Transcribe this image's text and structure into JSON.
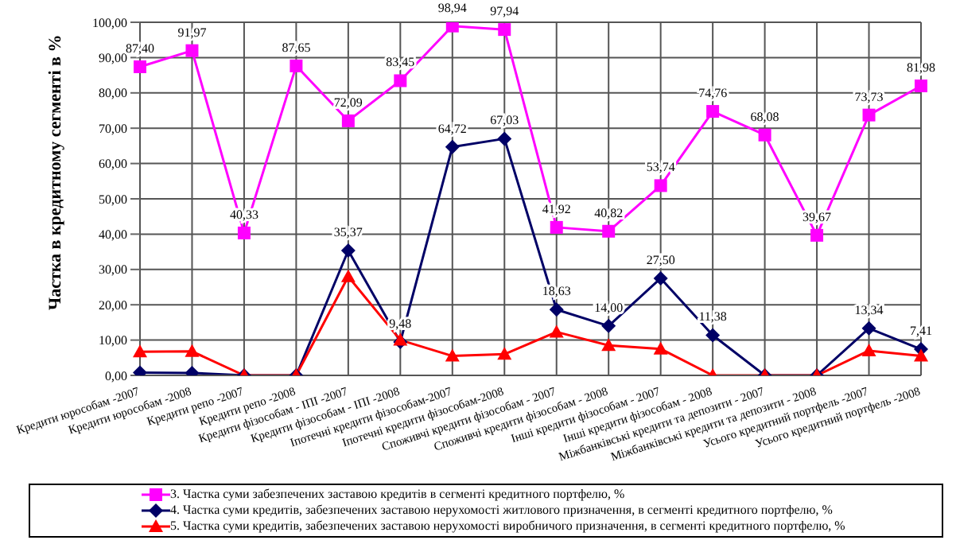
{
  "chart_data": {
    "type": "line",
    "ylabel": "Частка в кредитному сегменті в %",
    "categories": [
      "Кредити юрособам -2007",
      "Кредити юрособам -2008",
      "Кредити репо -2007",
      "Кредити репо -2008",
      "Кредити фізособам - ІПІ -2007",
      "Кредити фізособам - ІПІ -2008",
      "Іпотечні кредити фізособам-2007",
      "Іпотечні кредити фізособам-2008",
      "Споживчі кредити фізособам - 2007",
      "Споживчі кредити фізособам - 2008",
      "Інші кредити фізособам - 2007",
      "Інші кредити фізособам - 2008",
      "Міжбанківські кредити та депозити - 2007",
      "Міжбанківські кредити та депозити - 2008",
      "Усього кредитний портфель -2007",
      "Усього кредитний портфель -2008"
    ],
    "series": [
      {
        "name": "3. Частка суми забезпечених заставою кредитів в сегменті кредитного портфелю, %",
        "color": "#ff00ff",
        "marker": "square",
        "values": [
          87.4,
          91.97,
          40.33,
          87.65,
          72.09,
          83.45,
          98.94,
          97.94,
          41.92,
          40.82,
          53.74,
          74.76,
          68.08,
          39.67,
          73.73,
          81.98
        ],
        "value_labels": [
          "87,40",
          "91,97",
          "40,33",
          "87,65",
          "72,09",
          "83,45",
          "98,94",
          "97,94",
          "41,92",
          "40,82",
          "53,74",
          "74,76",
          "68,08",
          "39,67",
          "73,73",
          "81,98"
        ]
      },
      {
        "name": "4. Частка суми кредитів, забезпечених заставою нерухомості житлового призначення, в сегменті кредитного портфелю, %",
        "color": "#000066",
        "marker": "diamond",
        "values": [
          0.8,
          0.7,
          0,
          0,
          35.37,
          9.48,
          64.72,
          67.03,
          18.63,
          14.0,
          27.5,
          11.38,
          0,
          0,
          13.34,
          7.41
        ],
        "value_labels": [
          null,
          null,
          null,
          null,
          "35,37",
          "9,48",
          "64,72",
          "67,03",
          "18,63",
          "14,00",
          "27,50",
          "11,38",
          null,
          null,
          "13,34",
          "7,41"
        ]
      },
      {
        "name": "5. Частка суми кредитів, забезпечених заставою нерухомості виробничого призначення, в сегменті кредитного портфелю, %",
        "color": "#ff0000",
        "marker": "triangle",
        "values": [
          6.7,
          6.8,
          0,
          0,
          28,
          10,
          5.5,
          6,
          12.3,
          8.5,
          7.5,
          0,
          0,
          0,
          7,
          5.5
        ]
      }
    ],
    "ylim": [
      0,
      100
    ],
    "yticks": [
      {
        "value": 0,
        "label": "0,00"
      },
      {
        "value": 10,
        "label": "10,00"
      },
      {
        "value": 20,
        "label": "20,00"
      },
      {
        "value": 30,
        "label": "30,00"
      },
      {
        "value": 40,
        "label": "40,00"
      },
      {
        "value": 50,
        "label": "50,00"
      },
      {
        "value": 60,
        "label": "60,00"
      },
      {
        "value": 70,
        "label": "70,00"
      },
      {
        "value": 80,
        "label": "80,00"
      },
      {
        "value": 90,
        "label": "90,00"
      },
      {
        "value": 100,
        "label": "100,00"
      }
    ],
    "grid": true,
    "legend": "bottom"
  }
}
